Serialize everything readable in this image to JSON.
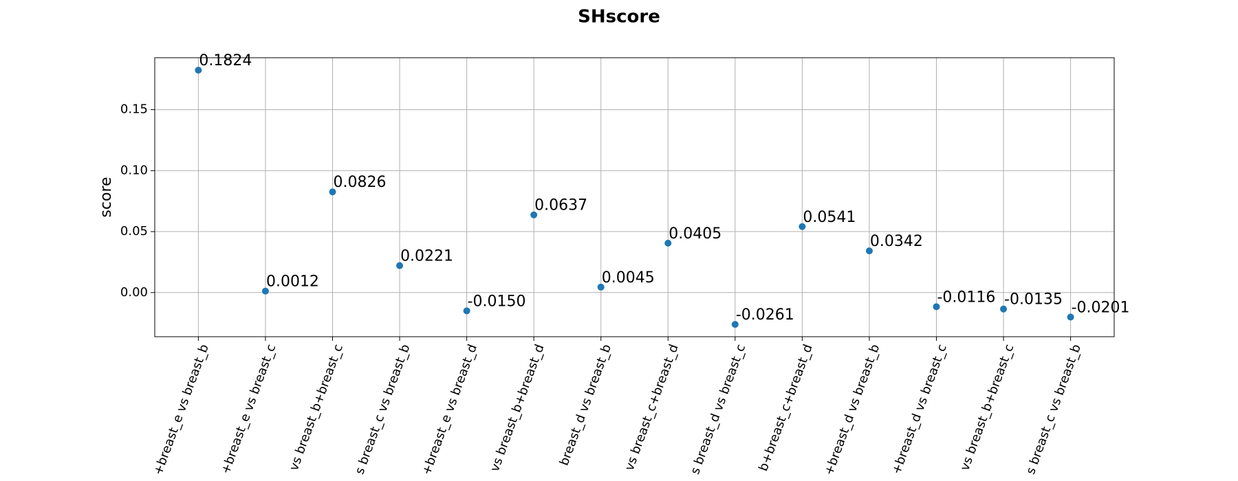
{
  "chart_data": {
    "type": "scatter",
    "title": "SHscore",
    "y_label": "score",
    "categories": [
      "+breast_e vs breast_b",
      "+breast_e vs breast_c",
      "vs breast_b+breast_c",
      "s breast_c vs breast_b",
      "+breast_e vs breast_d",
      "vs breast_b+breast_d",
      "breast_d vs breast_b",
      "vs breast_c+breast_d",
      "s breast_d vs breast_c",
      "b+breast_c+breast_d",
      "+breast_d vs breast_b",
      "+breast_d vs breast_c",
      "vs breast_b+breast_c",
      "s breast_c vs breast_b"
    ],
    "values": [
      0.1824,
      0.0012,
      0.0826,
      0.0221,
      -0.015,
      0.0637,
      0.0045,
      0.0405,
      -0.0261,
      0.0541,
      0.0342,
      -0.0116,
      -0.0135,
      -0.0201
    ],
    "value_labels": [
      "0.1824",
      "0.0012",
      "0.0826",
      "0.0221",
      "-0.0150",
      "0.0637",
      "0.0045",
      "0.0405",
      "-0.0261",
      "0.0541",
      "0.0342",
      "-0.0116",
      "-0.0135",
      "-0.0201"
    ],
    "color": "#1f77b4",
    "ylim": [
      -0.0362,
      0.1926
    ],
    "yticks": [
      {
        "value": 0,
        "label": "0.00"
      },
      {
        "value": 0.05,
        "label": "0.05"
      },
      {
        "value": 0.1,
        "label": "0.10"
      },
      {
        "value": 0.15,
        "label": "0.15"
      }
    ],
    "grid": true
  }
}
